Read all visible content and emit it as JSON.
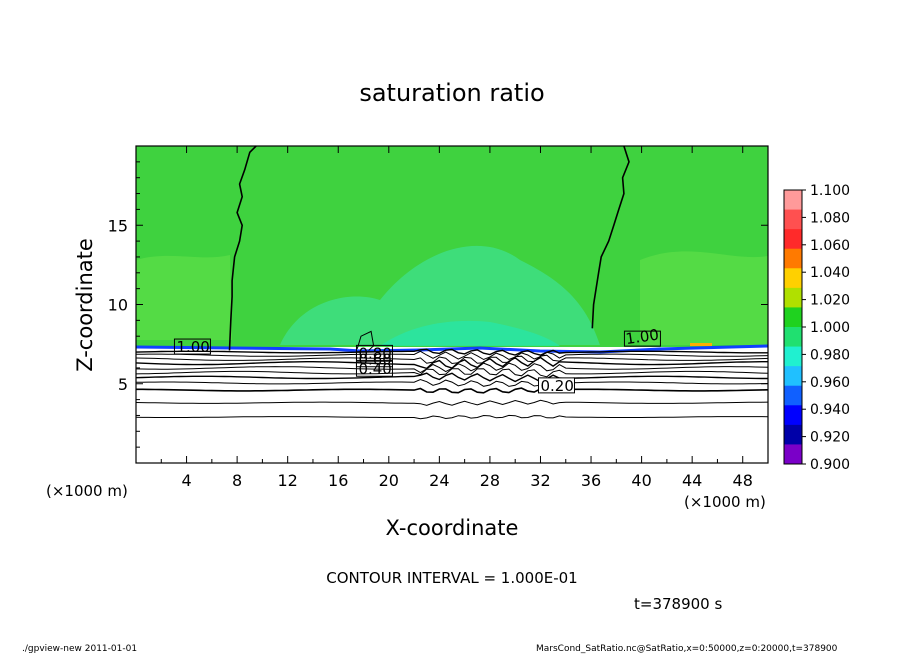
{
  "chart_data": {
    "type": "heatmap",
    "title": "saturation ratio",
    "xlabel": "X-coordinate",
    "ylabel": "Z-coordinate",
    "x_unit": "(×1000 m)",
    "y_unit": "(×1000 m)",
    "xlim": [
      0,
      50
    ],
    "ylim": [
      0,
      20
    ],
    "x_ticks": [
      4,
      8,
      12,
      16,
      20,
      24,
      28,
      32,
      36,
      40,
      44,
      48
    ],
    "y_ticks": [
      5,
      10,
      15
    ],
    "colorbar": {
      "levels": [
        "1.100",
        "1.080",
        "1.060",
        "1.040",
        "1.020",
        "1.000",
        "0.980",
        "0.960",
        "0.940",
        "0.920",
        "0.900"
      ],
      "colors": [
        "#ff9a9a",
        "#ff5050",
        "#ff2a2a",
        "#ff7a00",
        "#ffd000",
        "#b0e000",
        "#1fd21f",
        "#20e070",
        "#20f0d0",
        "#20c0ff",
        "#1060ff",
        "#0000ff",
        "#0000a8",
        "#7a00c8"
      ]
    },
    "contours": [
      {
        "label": "1.00",
        "level": 1.0
      },
      {
        "label": "1.00",
        "level": 1.0
      },
      {
        "label": "0.80",
        "level": 0.8
      },
      {
        "label": "0.60",
        "level": 0.6
      },
      {
        "label": "0.40",
        "level": 0.4
      },
      {
        "label": "0.20",
        "level": 0.2
      }
    ],
    "contour_interval_text": "CONTOUR INTERVAL = 1.000E-01",
    "time_text": "t=378900 s"
  },
  "footer": {
    "left": "./gpview-new  2011-01-01",
    "right": "MarsCond_SatRatio.nc@SatRatio,x=0:50000,z=0:20000,t=378900"
  },
  "colors": {
    "field_green": "#3fd23f",
    "field_light": "#56dc44",
    "field_cyan": "#3ee08a"
  }
}
